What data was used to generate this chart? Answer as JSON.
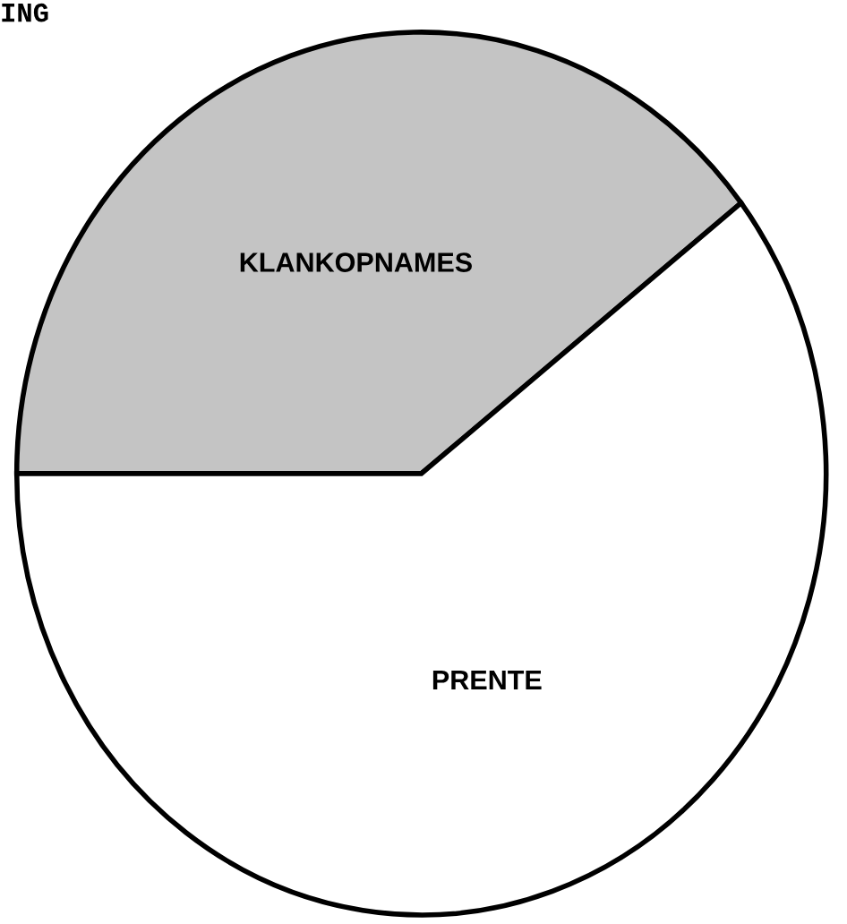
{
  "chart_data": {
    "type": "pie",
    "title": "ING",
    "categories": [
      "KLANKOPNAMES",
      "PRENTE"
    ],
    "values": [
      39.5,
      60.5
    ],
    "colors": [
      "#c4c4c4",
      "#ffffff"
    ]
  }
}
